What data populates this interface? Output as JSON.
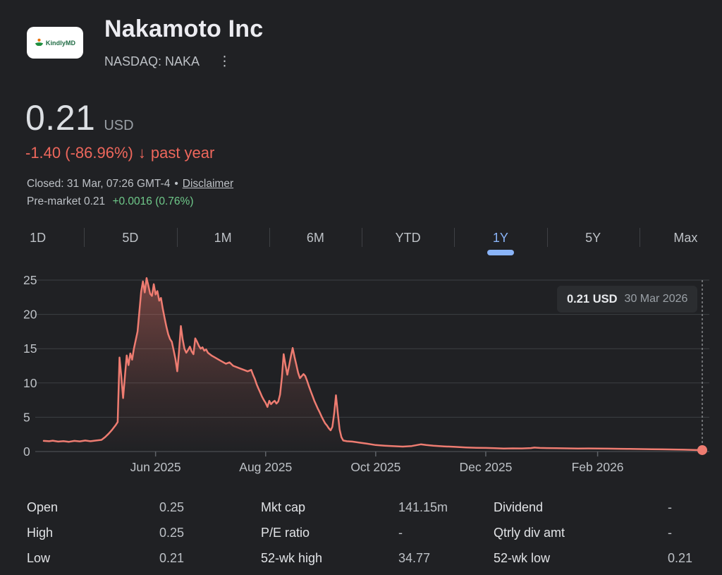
{
  "colors": {
    "background": "#202124",
    "accent_blue": "#8ab4f8",
    "negative_red": "#ee675c",
    "positive_green": "#6fc98a",
    "chart_line": "#ee7c71",
    "gridline": "#3c4043",
    "axis_text": "#bdc1c6"
  },
  "header": {
    "logo_text": "KindlyMD",
    "title": "Nakamoto Inc",
    "exchange": "NASDAQ: NAKA",
    "menu_icon": "⋮"
  },
  "quote": {
    "price": "0.21",
    "currency": "USD",
    "change": "-1.40 (-86.96%)",
    "arrow": "↓",
    "period": "past year",
    "market_status": "Closed: 31 Mar, 07:26 GMT-4",
    "separator": "•",
    "disclaimer": "Disclaimer",
    "premarket": "Pre-market 0.21",
    "premarket_change": "+0.0016 (0.76%)"
  },
  "tabs": {
    "items": [
      "1D",
      "5D",
      "1M",
      "6M",
      "YTD",
      "1Y",
      "5Y",
      "Max"
    ],
    "active": "1Y"
  },
  "tooltip": {
    "price": "0.21 USD",
    "date": "30 Mar 2026"
  },
  "chart_data": {
    "type": "area",
    "title": "NAKA share price, past year (31 Mar 2025 - 30 Mar 2026)",
    "ylim": [
      0,
      25
    ],
    "yticks": [
      0,
      5,
      10,
      15,
      20,
      25
    ],
    "grid": "horizontal",
    "xticks": [
      {
        "day": 62,
        "label": "Jun 2025"
      },
      {
        "day": 123,
        "label": "Aug 2025"
      },
      {
        "day": 184,
        "label": "Oct 2025"
      },
      {
        "day": 245,
        "label": "Dec 2025"
      },
      {
        "day": 307,
        "label": "Feb 2026"
      }
    ],
    "end_point": {
      "day": 365,
      "value": 0.21
    },
    "series": [
      {
        "name": "price_usd",
        "points": [
          [
            0,
            1.55
          ],
          [
            3,
            1.5
          ],
          [
            5,
            1.58
          ],
          [
            8,
            1.45
          ],
          [
            11,
            1.52
          ],
          [
            14,
            1.42
          ],
          [
            17,
            1.55
          ],
          [
            20,
            1.48
          ],
          [
            23,
            1.6
          ],
          [
            26,
            1.5
          ],
          [
            29,
            1.6
          ],
          [
            32,
            1.7
          ],
          [
            34,
            2.1
          ],
          [
            36,
            2.6
          ],
          [
            38,
            3.2
          ],
          [
            40,
            3.9
          ],
          [
            41,
            4.3
          ],
          [
            42,
            13.7
          ],
          [
            43,
            11
          ],
          [
            44,
            7.8
          ],
          [
            45,
            11
          ],
          [
            46,
            14
          ],
          [
            47,
            12.6
          ],
          [
            48,
            14.3
          ],
          [
            49,
            13.4
          ],
          [
            50,
            15
          ],
          [
            52,
            17.5
          ],
          [
            54,
            23.3
          ],
          [
            55,
            24.8
          ],
          [
            56,
            23.2
          ],
          [
            57,
            25.3
          ],
          [
            58,
            24.2
          ],
          [
            59,
            23
          ],
          [
            60,
            22.7
          ],
          [
            61,
            24.4
          ],
          [
            62,
            22.9
          ],
          [
            63,
            23.4
          ],
          [
            64,
            22
          ],
          [
            65,
            22.4
          ],
          [
            66,
            20.8
          ],
          [
            67,
            19.5
          ],
          [
            68,
            18.2
          ],
          [
            69,
            17.1
          ],
          [
            70,
            16.4
          ],
          [
            71,
            16
          ],
          [
            72,
            14.8
          ],
          [
            73,
            13.5
          ],
          [
            74,
            11.7
          ],
          [
            75,
            14.6
          ],
          [
            76,
            18.3
          ],
          [
            77,
            16.4
          ],
          [
            78,
            15
          ],
          [
            79,
            14.4
          ],
          [
            80,
            14.8
          ],
          [
            81,
            15.3
          ],
          [
            82,
            14.6
          ],
          [
            83,
            14.2
          ],
          [
            84,
            16.5
          ],
          [
            85,
            16
          ],
          [
            86,
            15.4
          ],
          [
            87,
            15
          ],
          [
            88,
            15.2
          ],
          [
            89,
            14.7
          ],
          [
            90,
            14.9
          ],
          [
            91,
            14.4
          ],
          [
            93,
            14
          ],
          [
            95,
            13.7
          ],
          [
            97,
            13.4
          ],
          [
            99,
            13.1
          ],
          [
            101,
            12.8
          ],
          [
            103,
            13
          ],
          [
            105,
            12.5
          ],
          [
            107,
            12.3
          ],
          [
            109,
            12.1
          ],
          [
            111,
            11.9
          ],
          [
            113,
            11.7
          ],
          [
            115,
            11.9
          ],
          [
            116,
            11.2
          ],
          [
            117,
            10.6
          ],
          [
            118,
            9.8
          ],
          [
            119,
            9.2
          ],
          [
            120,
            8.6
          ],
          [
            121,
            8
          ],
          [
            122,
            7.5
          ],
          [
            123,
            7.1
          ],
          [
            124,
            6.5
          ],
          [
            125,
            7.4
          ],
          [
            126,
            6.9
          ],
          [
            127,
            7.2
          ],
          [
            128,
            7.4
          ],
          [
            129,
            7
          ],
          [
            130,
            7.3
          ],
          [
            131,
            8.3
          ],
          [
            132,
            10.8
          ],
          [
            133,
            14.2
          ],
          [
            134,
            12.6
          ],
          [
            135,
            11.2
          ],
          [
            136,
            12.5
          ],
          [
            137,
            13.9
          ],
          [
            138,
            15.1
          ],
          [
            139,
            13.8
          ],
          [
            140,
            12.7
          ],
          [
            141,
            11.5
          ],
          [
            142,
            10.7
          ],
          [
            143,
            11
          ],
          [
            144,
            11.3
          ],
          [
            145,
            11
          ],
          [
            146,
            10.3
          ],
          [
            147,
            9.5
          ],
          [
            148,
            8.8
          ],
          [
            149,
            8.1
          ],
          [
            150,
            7.4
          ],
          [
            151,
            6.8
          ],
          [
            152,
            6.2
          ],
          [
            153,
            5.7
          ],
          [
            154,
            5.1
          ],
          [
            155,
            4.6
          ],
          [
            156,
            4.1
          ],
          [
            157,
            3.8
          ],
          [
            158,
            3.4
          ],
          [
            159,
            3.1
          ],
          [
            160,
            3.6
          ],
          [
            161,
            5.6
          ],
          [
            162,
            8.2
          ],
          [
            163,
            5.6
          ],
          [
            164,
            3.2
          ],
          [
            165,
            2.1
          ],
          [
            166,
            1.6
          ],
          [
            168,
            1.5
          ],
          [
            171,
            1.45
          ],
          [
            175,
            1.3
          ],
          [
            179,
            1.15
          ],
          [
            184,
            0.95
          ],
          [
            189,
            0.85
          ],
          [
            194,
            0.78
          ],
          [
            199,
            0.72
          ],
          [
            204,
            0.8
          ],
          [
            209,
            1.05
          ],
          [
            212,
            0.95
          ],
          [
            216,
            0.85
          ],
          [
            222,
            0.75
          ],
          [
            228,
            0.68
          ],
          [
            234,
            0.6
          ],
          [
            240,
            0.55
          ],
          [
            245,
            0.52
          ],
          [
            250,
            0.48
          ],
          [
            255,
            0.44
          ],
          [
            260,
            0.46
          ],
          [
            265,
            0.45
          ],
          [
            270,
            0.5
          ],
          [
            272,
            0.58
          ],
          [
            275,
            0.52
          ],
          [
            279,
            0.5
          ],
          [
            284,
            0.48
          ],
          [
            290,
            0.46
          ],
          [
            296,
            0.44
          ],
          [
            302,
            0.45
          ],
          [
            307,
            0.44
          ],
          [
            313,
            0.42
          ],
          [
            319,
            0.4
          ],
          [
            325,
            0.38
          ],
          [
            331,
            0.36
          ],
          [
            337,
            0.34
          ],
          [
            343,
            0.32
          ],
          [
            349,
            0.3
          ],
          [
            355,
            0.27
          ],
          [
            360,
            0.24
          ],
          [
            365,
            0.21
          ]
        ]
      }
    ]
  },
  "stats": {
    "columns": [
      [
        {
          "label": "Open",
          "value": "0.25"
        },
        {
          "label": "High",
          "value": "0.25"
        },
        {
          "label": "Low",
          "value": "0.21"
        }
      ],
      [
        {
          "label": "Mkt cap",
          "value": "141.15m"
        },
        {
          "label": "P/E ratio",
          "value": "-"
        },
        {
          "label": "52-wk high",
          "value": "34.77"
        }
      ],
      [
        {
          "label": "Dividend",
          "value": "-"
        },
        {
          "label": "Qtrly div amt",
          "value": "-"
        },
        {
          "label": "52-wk low",
          "value": "0.21"
        }
      ]
    ]
  }
}
